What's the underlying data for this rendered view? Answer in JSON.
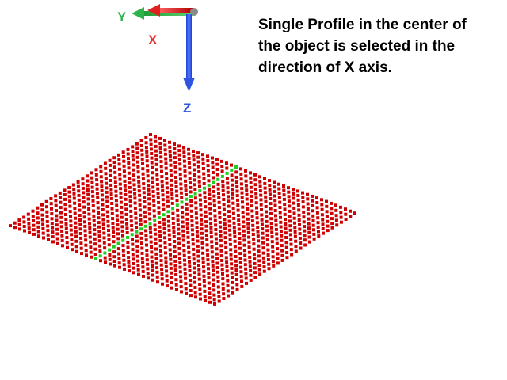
{
  "axes": {
    "x_label": "X",
    "y_label": "Y",
    "z_label": "Z",
    "x_color": "#e03030",
    "y_color": "#2db34a",
    "z_color": "#2f55e0",
    "origin_color": "#8a8a8a"
  },
  "annotation": {
    "lines": [
      "Single Profile in the center of",
      "the object is selected in the",
      "direction of X axis."
    ]
  },
  "point_cloud": {
    "description_colors": {
      "points": "#cc0000",
      "selected_profile": "#22cc22"
    },
    "rows": 32,
    "columns": 44,
    "selected_row_index": 15,
    "selected_row_state": "selected",
    "selected_axis": "X"
  }
}
